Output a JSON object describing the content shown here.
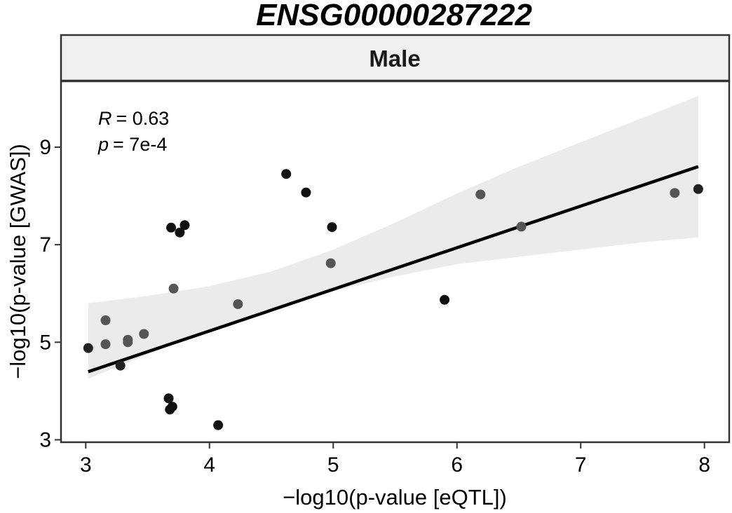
{
  "chart_data": {
    "type": "scatter",
    "title": "ENSG00000287222",
    "facet_label": "Male",
    "xlabel": "−log10(p-value [eQTL])",
    "ylabel": "−log10(p-value [GWAS])",
    "xlim": [
      2.8,
      8.2
    ],
    "ylim": [
      2.95,
      10.35
    ],
    "x_ticks": [
      3,
      4,
      5,
      6,
      7,
      8
    ],
    "x_tick_labels": [
      "3",
      "4",
      "5",
      "6",
      "7",
      "8"
    ],
    "y_ticks": [
      3,
      5,
      7,
      9
    ],
    "y_tick_labels": [
      "3",
      "5",
      "7",
      "9"
    ],
    "annotation": {
      "r_symbol": "R",
      "r_value": "= 0.63",
      "p_symbol": "p",
      "p_value": "= 7e-4"
    },
    "regression": {
      "x_range": [
        3.02,
        7.95
      ],
      "intercept": 1.82,
      "slope": 0.853,
      "ci_band": [
        {
          "x": 3.02,
          "lo": 4.25,
          "hi": 5.8
        },
        {
          "x": 3.5,
          "lo": 4.75,
          "hi": 5.95
        },
        {
          "x": 4.0,
          "lo": 5.25,
          "hi": 6.15
        },
        {
          "x": 4.5,
          "lo": 5.7,
          "hi": 6.45
        },
        {
          "x": 5.0,
          "lo": 6.05,
          "hi": 6.9
        },
        {
          "x": 5.5,
          "lo": 6.35,
          "hi": 7.45
        },
        {
          "x": 6.0,
          "lo": 6.6,
          "hi": 8.05
        },
        {
          "x": 6.5,
          "lo": 6.75,
          "hi": 8.6
        },
        {
          "x": 7.0,
          "lo": 6.9,
          "hi": 9.1
        },
        {
          "x": 7.5,
          "lo": 7.05,
          "hi": 9.6
        },
        {
          "x": 7.95,
          "lo": 7.15,
          "hi": 10.05
        }
      ]
    },
    "points": [
      {
        "x": 3.02,
        "y": 4.88,
        "color": "#222222"
      },
      {
        "x": 3.16,
        "y": 5.45,
        "color": "#555555"
      },
      {
        "x": 3.16,
        "y": 4.96,
        "color": "#555555"
      },
      {
        "x": 3.28,
        "y": 4.52,
        "color": "#222222"
      },
      {
        "x": 3.34,
        "y": 5.05,
        "color": "#555555"
      },
      {
        "x": 3.34,
        "y": 5.0,
        "color": "#555555"
      },
      {
        "x": 3.47,
        "y": 5.17,
        "color": "#555555"
      },
      {
        "x": 3.67,
        "y": 3.85,
        "color": "#111111"
      },
      {
        "x": 3.68,
        "y": 3.62,
        "color": "#111111"
      },
      {
        "x": 3.7,
        "y": 3.68,
        "color": "#111111"
      },
      {
        "x": 3.69,
        "y": 7.35,
        "color": "#111111"
      },
      {
        "x": 3.71,
        "y": 6.1,
        "color": "#555555"
      },
      {
        "x": 3.76,
        "y": 7.25,
        "color": "#111111"
      },
      {
        "x": 3.8,
        "y": 7.4,
        "color": "#111111"
      },
      {
        "x": 4.07,
        "y": 3.3,
        "color": "#111111"
      },
      {
        "x": 4.23,
        "y": 5.78,
        "color": "#555555"
      },
      {
        "x": 4.62,
        "y": 8.45,
        "color": "#111111"
      },
      {
        "x": 4.78,
        "y": 8.07,
        "color": "#111111"
      },
      {
        "x": 4.98,
        "y": 6.62,
        "color": "#555555"
      },
      {
        "x": 4.99,
        "y": 7.36,
        "color": "#111111"
      },
      {
        "x": 5.9,
        "y": 5.87,
        "color": "#111111"
      },
      {
        "x": 6.19,
        "y": 8.03,
        "color": "#555555"
      },
      {
        "x": 6.52,
        "y": 7.37,
        "color": "#555555"
      },
      {
        "x": 7.76,
        "y": 8.06,
        "color": "#555555"
      },
      {
        "x": 7.95,
        "y": 8.14,
        "color": "#222222"
      }
    ],
    "colors": {
      "line": "#000000",
      "band": "#ebebeb",
      "strip_fill": "#f0f0f0",
      "frame": "#333333"
    }
  }
}
